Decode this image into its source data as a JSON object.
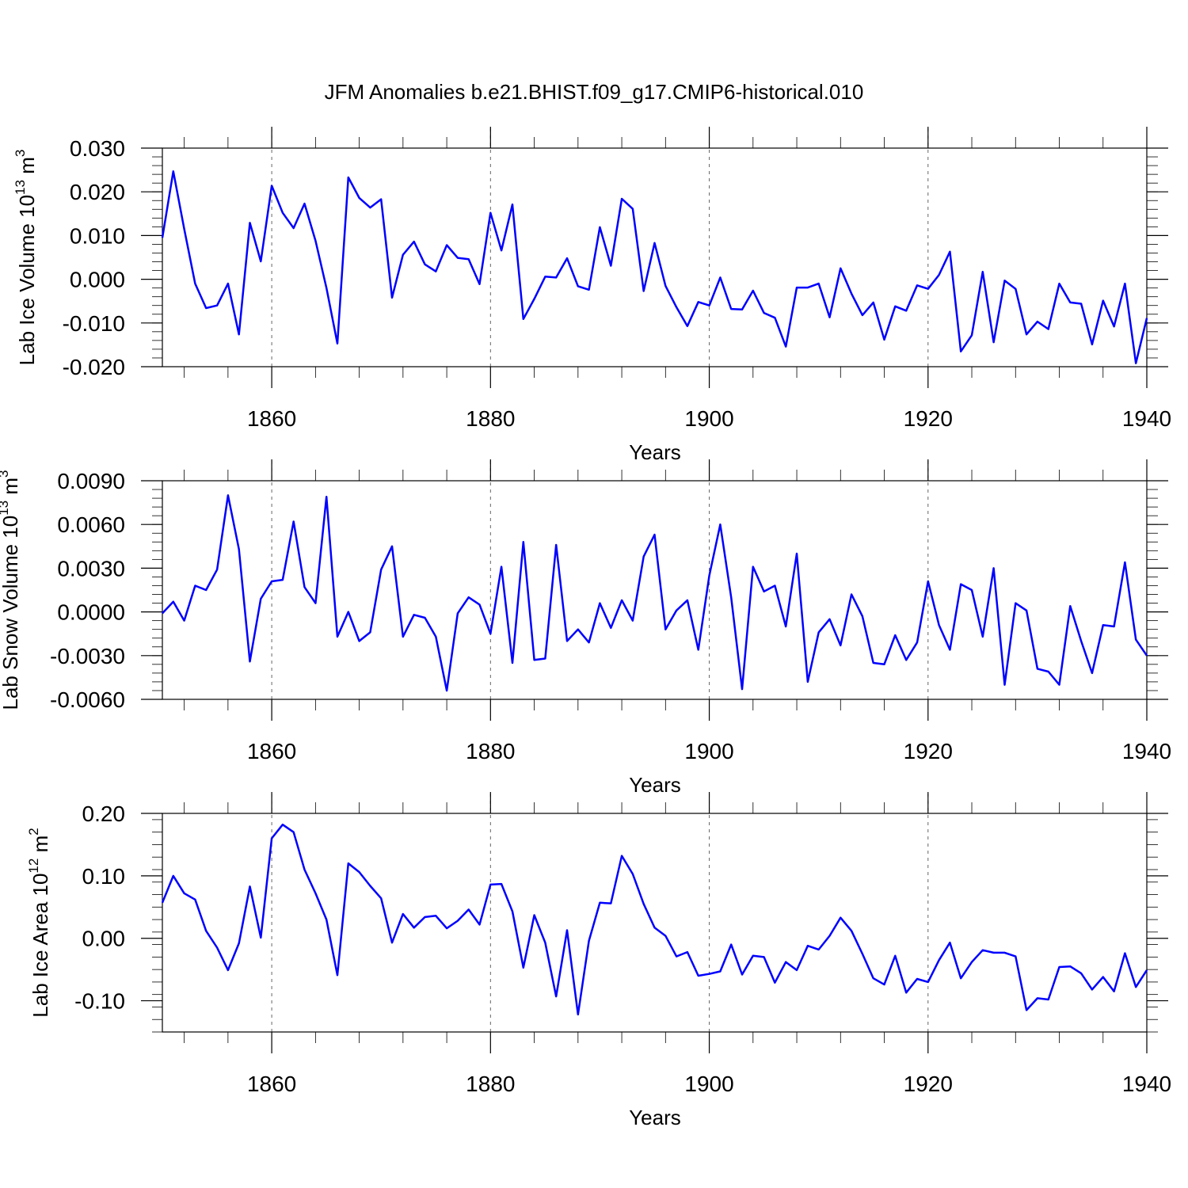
{
  "chart_data": [
    {
      "type": "line",
      "title": "JFM Anomalies b.e21.BHIST.f09_g17.CMIP6-historical.010",
      "ylabel": "Lab Ice Volume 10",
      "ylabel_exp": "13",
      "ylabel_unit": " m",
      "ylabel_unit_exp": "3",
      "xlabel": "Years",
      "xlim": [
        1850,
        1940
      ],
      "ylim": [
        -0.02,
        0.03
      ],
      "yticks": [
        -0.02,
        -0.01,
        0.0,
        0.01,
        0.02,
        0.03
      ],
      "ytick_labels": [
        "-0.020",
        "-0.010",
        "0.000",
        "0.010",
        "0.020",
        "0.030"
      ],
      "xticks": [
        1860,
        1880,
        1900,
        1920,
        1940
      ],
      "xtick_labels": [
        "1860",
        "1880",
        "1900",
        "1920",
        "1940"
      ],
      "grid_x": [
        1860,
        1880,
        1900,
        1920
      ],
      "line_color": "#0000ff",
      "start_year": 1850,
      "values": [
        0.0095,
        0.0247,
        0.0115,
        -0.001,
        -0.0066,
        -0.006,
        -0.001,
        -0.0126,
        0.0129,
        0.0041,
        0.0214,
        0.0152,
        0.0117,
        0.0173,
        0.0088,
        -0.002,
        -0.0147,
        0.0233,
        0.0186,
        0.0164,
        0.0183,
        -0.0042,
        0.0056,
        0.0086,
        0.0034,
        0.0018,
        0.0078,
        0.0049,
        0.0046,
        -0.0011,
        0.0152,
        0.0066,
        0.0171,
        -0.0091,
        -0.0045,
        0.0006,
        0.0004,
        0.0048,
        -0.0016,
        -0.0024,
        0.0119,
        0.0031,
        0.0184,
        0.0161,
        -0.0027,
        0.0083,
        -0.0015,
        -0.0064,
        -0.0107,
        -0.0052,
        -0.006,
        0.0004,
        -0.0068,
        -0.0069,
        -0.0026,
        -0.0077,
        -0.0088,
        -0.0154,
        -0.0019,
        -0.0019,
        -0.001,
        -0.0087,
        0.0025,
        -0.0033,
        -0.0082,
        -0.0053,
        -0.0138,
        -0.0062,
        -0.0072,
        -0.0014,
        -0.0022,
        0.001,
        0.0063,
        -0.0165,
        -0.0128,
        0.0017,
        -0.0144,
        -0.0003,
        -0.0022,
        -0.0126,
        -0.0097,
        -0.0114,
        -0.001,
        -0.0053,
        -0.0056,
        -0.0149,
        -0.0049,
        -0.0108,
        -0.001,
        -0.0192,
        -0.0089
      ]
    },
    {
      "type": "line",
      "ylabel": "Lab Snow Volume 10",
      "ylabel_exp": "13",
      "ylabel_unit": " m",
      "ylabel_unit_exp": "3",
      "xlabel": "Years",
      "xlim": [
        1850,
        1940
      ],
      "ylim": [
        -0.006,
        0.009
      ],
      "yticks": [
        -0.006,
        -0.003,
        0.0,
        0.003,
        0.006,
        0.009
      ],
      "ytick_labels": [
        "-0.0060",
        "-0.0030",
        "0.0000",
        "0.0030",
        "0.0060",
        "0.0090"
      ],
      "xticks": [
        1860,
        1880,
        1900,
        1920,
        1940
      ],
      "xtick_labels": [
        "1860",
        "1880",
        "1900",
        "1920",
        "1940"
      ],
      "grid_x": [
        1860,
        1880,
        1900,
        1920
      ],
      "line_color": "#0000ff",
      "start_year": 1850,
      "values": [
        -0.0001,
        0.0007,
        -0.0006,
        0.0018,
        0.0015,
        0.0029,
        0.008,
        0.0043,
        -0.0034,
        0.0009,
        0.0021,
        0.0022,
        0.0062,
        0.0017,
        0.0006,
        0.0079,
        -0.0017,
        0.0,
        -0.002,
        -0.0014,
        0.0029,
        0.0045,
        -0.0017,
        -0.0002,
        -0.0004,
        -0.0017,
        -0.0054,
        -0.0001,
        0.001,
        0.0005,
        -0.0015,
        0.0031,
        -0.0035,
        0.0048,
        -0.0033,
        -0.0032,
        0.0046,
        -0.002,
        -0.0012,
        -0.0021,
        0.0006,
        -0.0011,
        0.0008,
        -0.0006,
        0.0038,
        0.0053,
        -0.0012,
        0.0001,
        0.0008,
        -0.0026,
        0.0025,
        0.006,
        0.001,
        -0.0053,
        0.0031,
        0.0014,
        0.0018,
        -0.001,
        0.004,
        -0.0048,
        -0.0014,
        -0.0005,
        -0.0023,
        0.0012,
        -0.0003,
        -0.0035,
        -0.0036,
        -0.0016,
        -0.0033,
        -0.0021,
        0.0021,
        -0.0009,
        -0.0026,
        0.0019,
        0.0015,
        -0.0017,
        0.003,
        -0.005,
        0.0006,
        0.0001,
        -0.0039,
        -0.0041,
        -0.005,
        0.0004,
        -0.002,
        -0.0042,
        -0.0009,
        -0.001,
        0.0034,
        -0.0019,
        -0.003
      ]
    },
    {
      "type": "line",
      "ylabel": "Lab Ice Area 10",
      "ylabel_exp": "12",
      "ylabel_unit": " m",
      "ylabel_unit_exp": "2",
      "xlabel": "Years",
      "xlim": [
        1850,
        1940
      ],
      "ylim": [
        -0.15,
        0.2
      ],
      "yticks": [
        -0.1,
        0.0,
        0.1,
        0.2
      ],
      "ytick_labels": [
        "-0.10",
        "0.00",
        "0.10",
        "0.20"
      ],
      "xticks": [
        1860,
        1880,
        1900,
        1920,
        1940
      ],
      "xtick_labels": [
        "1860",
        "1880",
        "1900",
        "1920",
        "1940"
      ],
      "grid_x": [
        1860,
        1880,
        1900,
        1920
      ],
      "line_color": "#0000ff",
      "start_year": 1850,
      "values": [
        0.057,
        0.1,
        0.072,
        0.062,
        0.012,
        -0.015,
        -0.051,
        -0.008,
        0.083,
        0.001,
        0.16,
        0.182,
        0.17,
        0.11,
        0.072,
        0.03,
        -0.059,
        0.12,
        0.106,
        0.084,
        0.064,
        -0.007,
        0.039,
        0.017,
        0.034,
        0.036,
        0.016,
        0.028,
        0.046,
        0.022,
        0.086,
        0.087,
        0.043,
        -0.047,
        0.037,
        -0.007,
        -0.093,
        0.013,
        -0.122,
        -0.004,
        0.057,
        0.056,
        0.132,
        0.103,
        0.055,
        0.017,
        0.004,
        -0.029,
        -0.022,
        -0.06,
        -0.057,
        -0.053,
        -0.01,
        -0.058,
        -0.028,
        -0.03,
        -0.071,
        -0.038,
        -0.051,
        -0.012,
        -0.018,
        0.004,
        0.033,
        0.012,
        -0.025,
        -0.064,
        -0.074,
        -0.028,
        -0.087,
        -0.065,
        -0.07,
        -0.035,
        -0.007,
        -0.064,
        -0.038,
        -0.019,
        -0.023,
        -0.023,
        -0.029,
        -0.115,
        -0.096,
        -0.098,
        -0.046,
        -0.045,
        -0.056,
        -0.082,
        -0.062,
        -0.085,
        -0.024,
        -0.078,
        -0.051
      ]
    }
  ]
}
